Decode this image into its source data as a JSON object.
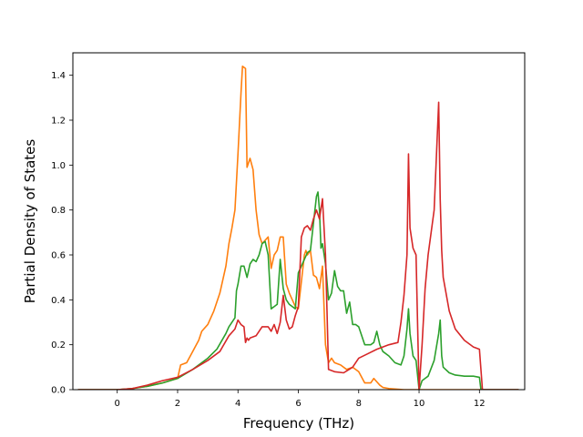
{
  "chart_data": {
    "type": "line",
    "title": "",
    "xlabel": "Frequency (THz)",
    "ylabel": "Partial Density of States",
    "xlim": [
      -1.47,
      13.5
    ],
    "ylim": [
      0.0,
      1.5
    ],
    "xticks": [
      0,
      2,
      4,
      6,
      8,
      10,
      12
    ],
    "yticks": [
      0.0,
      0.2,
      0.4,
      0.6,
      0.8,
      1.0,
      1.2,
      1.4
    ],
    "xtick_labels": [
      "0",
      "2",
      "4",
      "6",
      "8",
      "10",
      "12"
    ],
    "ytick_labels": [
      "0.0",
      "0.2",
      "0.4",
      "0.6",
      "0.8",
      "1.0",
      "1.2",
      "1.4"
    ],
    "grid": false,
    "legend": "none",
    "series": [
      {
        "color": "#ff7f0e",
        "x": [
          -1.3,
          -0.5,
          0.0,
          0.5,
          1.0,
          1.5,
          2.0,
          2.1,
          2.3,
          2.5,
          2.7,
          2.8,
          3.0,
          3.2,
          3.4,
          3.6,
          3.7,
          3.8,
          3.9,
          4.0,
          4.1,
          4.15,
          4.25,
          4.3,
          4.4,
          4.5,
          4.6,
          4.7,
          4.8,
          5.0,
          5.1,
          5.2,
          5.3,
          5.4,
          5.5,
          5.6,
          5.7,
          5.8,
          5.9,
          6.0,
          6.1,
          6.2,
          6.25,
          6.3,
          6.4,
          6.5,
          6.6,
          6.7,
          6.8,
          6.9,
          7.0,
          7.1,
          7.2,
          7.4,
          7.6,
          7.8,
          8.0,
          8.2,
          8.4,
          8.5,
          8.6,
          8.7,
          8.8,
          9.0,
          9.5,
          10.0,
          10.5,
          11.0,
          11.5,
          12.0,
          12.5,
          13.3
        ],
        "y": [
          0.0,
          0.0,
          0.0,
          0.005,
          0.015,
          0.03,
          0.05,
          0.11,
          0.12,
          0.17,
          0.22,
          0.26,
          0.29,
          0.35,
          0.43,
          0.55,
          0.65,
          0.72,
          0.8,
          1.05,
          1.32,
          1.44,
          1.43,
          0.99,
          1.03,
          0.98,
          0.8,
          0.69,
          0.65,
          0.68,
          0.54,
          0.6,
          0.62,
          0.68,
          0.68,
          0.47,
          0.43,
          0.4,
          0.37,
          0.36,
          0.48,
          0.6,
          0.62,
          0.6,
          0.62,
          0.51,
          0.5,
          0.45,
          0.55,
          0.2,
          0.12,
          0.14,
          0.12,
          0.11,
          0.09,
          0.1,
          0.08,
          0.03,
          0.03,
          0.05,
          0.035,
          0.02,
          0.01,
          0.005,
          0.0,
          0.0,
          0.0,
          0.0,
          0.0,
          0.0,
          0.0,
          0.0
        ]
      },
      {
        "color": "#2ca02c",
        "x": [
          -1.3,
          -0.5,
          0.0,
          0.5,
          1.0,
          1.5,
          2.0,
          2.5,
          3.0,
          3.3,
          3.6,
          3.7,
          3.9,
          3.95,
          4.0,
          4.1,
          4.2,
          4.3,
          4.4,
          4.5,
          4.6,
          4.7,
          4.8,
          4.9,
          5.0,
          5.1,
          5.2,
          5.3,
          5.4,
          5.5,
          5.6,
          5.7,
          5.8,
          5.9,
          6.0,
          6.1,
          6.2,
          6.3,
          6.4,
          6.5,
          6.6,
          6.65,
          6.7,
          6.75,
          6.8,
          6.9,
          7.0,
          7.1,
          7.2,
          7.3,
          7.4,
          7.5,
          7.6,
          7.7,
          7.8,
          7.9,
          8.0,
          8.2,
          8.4,
          8.5,
          8.6,
          8.7,
          8.8,
          9.0,
          9.2,
          9.4,
          9.5,
          9.6,
          9.65,
          9.7,
          9.8,
          9.9,
          10.0,
          10.1,
          10.2,
          10.3,
          10.5,
          10.65,
          10.7,
          10.75,
          10.8,
          11.0,
          11.2,
          11.5,
          11.8,
          12.0,
          12.05,
          12.5,
          13.3
        ],
        "y": [
          0.0,
          0.0,
          0.0,
          0.005,
          0.015,
          0.03,
          0.05,
          0.09,
          0.14,
          0.18,
          0.25,
          0.28,
          0.32,
          0.44,
          0.47,
          0.55,
          0.55,
          0.5,
          0.56,
          0.58,
          0.57,
          0.6,
          0.65,
          0.66,
          0.6,
          0.36,
          0.37,
          0.38,
          0.58,
          0.45,
          0.4,
          0.38,
          0.37,
          0.36,
          0.52,
          0.55,
          0.58,
          0.61,
          0.62,
          0.74,
          0.86,
          0.88,
          0.8,
          0.63,
          0.65,
          0.56,
          0.4,
          0.43,
          0.53,
          0.46,
          0.44,
          0.44,
          0.34,
          0.39,
          0.29,
          0.29,
          0.28,
          0.2,
          0.2,
          0.21,
          0.26,
          0.2,
          0.17,
          0.15,
          0.12,
          0.11,
          0.15,
          0.27,
          0.36,
          0.25,
          0.15,
          0.13,
          0.0,
          0.04,
          0.05,
          0.06,
          0.13,
          0.25,
          0.31,
          0.15,
          0.1,
          0.075,
          0.065,
          0.06,
          0.06,
          0.055,
          0.0,
          0.0,
          0.0
        ]
      },
      {
        "color": "#d62728",
        "x": [
          -1.3,
          -0.5,
          0.0,
          0.5,
          1.0,
          1.5,
          2.0,
          2.5,
          3.0,
          3.4,
          3.7,
          3.9,
          4.0,
          4.1,
          4.2,
          4.25,
          4.3,
          4.35,
          4.4,
          4.6,
          4.8,
          5.0,
          5.1,
          5.2,
          5.3,
          5.4,
          5.5,
          5.6,
          5.7,
          5.8,
          5.9,
          6.0,
          6.1,
          6.2,
          6.3,
          6.4,
          6.5,
          6.6,
          6.7,
          6.8,
          6.9,
          6.95,
          7.0,
          7.2,
          7.5,
          7.8,
          8.0,
          8.3,
          8.6,
          9.0,
          9.3,
          9.4,
          9.5,
          9.6,
          9.65,
          9.7,
          9.8,
          9.9,
          10.0,
          10.1,
          10.2,
          10.3,
          10.5,
          10.65,
          10.7,
          10.75,
          10.8,
          11.0,
          11.2,
          11.5,
          11.8,
          12.0,
          12.1,
          12.5,
          13.3
        ],
        "y": [
          0.0,
          0.0,
          0.0,
          0.005,
          0.02,
          0.04,
          0.055,
          0.09,
          0.13,
          0.17,
          0.24,
          0.27,
          0.31,
          0.29,
          0.28,
          0.21,
          0.23,
          0.22,
          0.23,
          0.24,
          0.28,
          0.28,
          0.26,
          0.29,
          0.25,
          0.3,
          0.42,
          0.31,
          0.27,
          0.28,
          0.33,
          0.37,
          0.68,
          0.72,
          0.73,
          0.71,
          0.76,
          0.8,
          0.76,
          0.85,
          0.6,
          0.35,
          0.09,
          0.08,
          0.075,
          0.1,
          0.14,
          0.16,
          0.18,
          0.2,
          0.21,
          0.3,
          0.42,
          0.6,
          1.05,
          0.72,
          0.63,
          0.6,
          0.0,
          0.2,
          0.45,
          0.6,
          0.8,
          1.28,
          0.85,
          0.62,
          0.5,
          0.35,
          0.27,
          0.22,
          0.19,
          0.18,
          0.0,
          0.0,
          0.0
        ]
      }
    ]
  }
}
